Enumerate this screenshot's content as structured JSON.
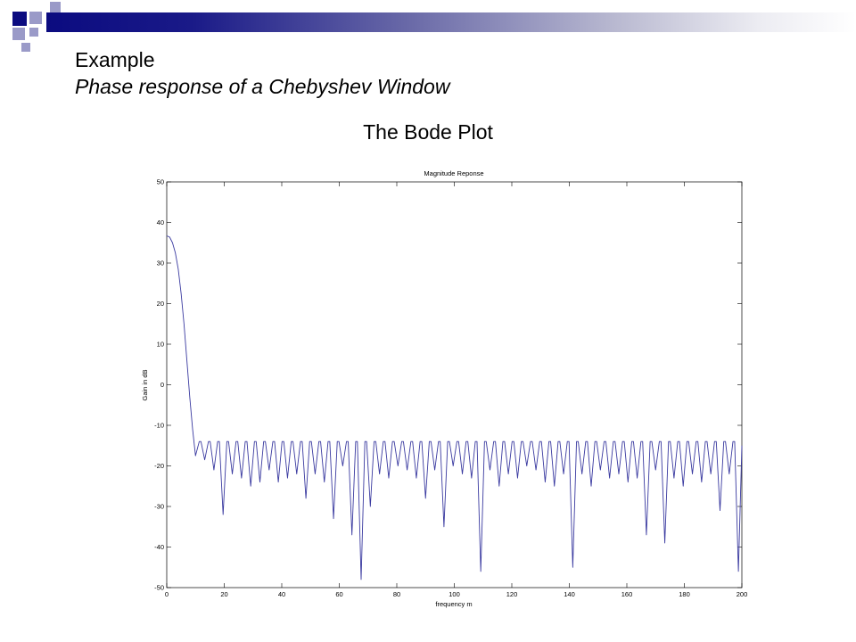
{
  "slide": {
    "title": "Example",
    "subtitle": "Phase response of a Chebyshev Window",
    "heading": "The Bode Plot"
  },
  "colors": {
    "accent_dark": "#0b0b80",
    "accent_light": "#9a9ac8",
    "line": "#3a3aa0"
  },
  "chart_data": {
    "type": "line",
    "title": "Magnitude Reponse",
    "xlabel": "frequency m",
    "ylabel": "Gain in dB",
    "xlim": [
      0,
      200
    ],
    "ylim": [
      -50,
      50
    ],
    "xticks": [
      "0",
      "20",
      "40",
      "60",
      "80",
      "100",
      "120",
      "140",
      "160",
      "180",
      "200"
    ],
    "yticks": [
      "50",
      "40",
      "30",
      "20",
      "10",
      "0",
      "-10",
      "-20",
      "-30",
      "-40",
      "-50"
    ],
    "grid": false,
    "mainlobe": {
      "x": [
        0,
        1,
        2,
        3,
        4,
        5,
        6,
        7,
        8,
        9,
        10
      ],
      "y": [
        36.7,
        36.4,
        35.0,
        32.5,
        28.5,
        22.5,
        15.0,
        6.0,
        -3.0,
        -11.0,
        -17.5
      ]
    },
    "sidelobe_period": 3.2,
    "sidelobe_peak_db": -13.7,
    "sidelobe_minima": [
      -18.5,
      -21,
      -32,
      -22,
      -23,
      -25,
      -24,
      -21,
      -24,
      -23,
      -22,
      -28,
      -22,
      -24,
      -33,
      -20,
      -37,
      -48,
      -30,
      -22,
      -23,
      -20,
      -21,
      -23,
      -28,
      -21,
      -35,
      -20,
      -22,
      -23,
      -46,
      -21,
      -25,
      -22,
      -23,
      -20,
      -21,
      -24,
      -25,
      -22,
      -45,
      -22,
      -25,
      -21,
      -23,
      -22,
      -24,
      -23,
      -37,
      -21,
      -39,
      -23,
      -25,
      -22,
      -24,
      -22,
      -31,
      -22,
      -46,
      -25,
      -22,
      -26,
      -22
    ]
  }
}
